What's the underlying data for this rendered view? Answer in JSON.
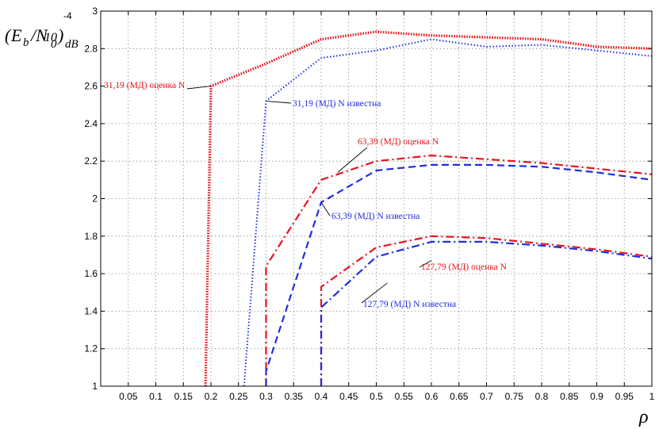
{
  "chart_data": {
    "type": "line",
    "title": "",
    "xlabel": "ρ",
    "ylabel": "(E_b/N_0)_dB",
    "y_multiplier": "10",
    "y_multiplier_exp": "-4",
    "xlim": [
      0,
      1
    ],
    "ylim": [
      1,
      3
    ],
    "xticks": [
      "0.05",
      "0.1",
      "0.15",
      "0.2",
      "0.25",
      "0.3",
      "0.35",
      "0.4",
      "0.45",
      "0.5",
      "0.55",
      "0.6",
      "0.65",
      "0.7",
      "0.75",
      "0.8",
      "0.85",
      "0.9",
      "0.95",
      "1"
    ],
    "yticks": [
      "1",
      "1.2",
      "1.4",
      "1.6",
      "1.8",
      "2",
      "2.2",
      "2.4",
      "2.6",
      "2.8",
      "3"
    ],
    "grid": true,
    "series": [
      {
        "name": "31,19 (МД) оценка N",
        "color": "#e8141c",
        "style": "dotted-thick",
        "x": [
          0.19,
          0.2,
          0.3,
          0.4,
          0.5,
          0.6,
          0.7,
          0.8,
          0.9,
          1.0
        ],
        "y": [
          1.0,
          2.6,
          2.72,
          2.85,
          2.89,
          2.87,
          2.86,
          2.85,
          2.81,
          2.8
        ]
      },
      {
        "name": "31,19 (МД) N известна",
        "color": "#1f2ee0",
        "style": "dotted",
        "x": [
          0.26,
          0.3,
          0.4,
          0.5,
          0.6,
          0.7,
          0.8,
          0.9,
          1.0
        ],
        "y": [
          1.0,
          2.52,
          2.75,
          2.79,
          2.85,
          2.81,
          2.82,
          2.79,
          2.76
        ]
      },
      {
        "name": "63,39 (МД) оценка N",
        "color": "#e8141c",
        "style": "dash-dot",
        "x": [
          0.3,
          0.3,
          0.4,
          0.5,
          0.6,
          0.7,
          0.8,
          0.9,
          1.0
        ],
        "y": [
          1.0,
          1.64,
          2.1,
          2.2,
          2.23,
          2.21,
          2.19,
          2.16,
          2.13
        ]
      },
      {
        "name": "63,39 (МД) N известна",
        "color": "#1f2ee0",
        "style": "dashed",
        "x": [
          0.3,
          0.3,
          0.4,
          0.5,
          0.6,
          0.7,
          0.8,
          0.9,
          1.0
        ],
        "y": [
          1.0,
          1.08,
          1.98,
          2.15,
          2.18,
          2.18,
          2.17,
          2.14,
          2.1
        ]
      },
      {
        "name": "127,79 (МД) оценка N",
        "color": "#e8141c",
        "style": "dash-dot",
        "x": [
          0.4,
          0.4,
          0.5,
          0.6,
          0.7,
          0.8,
          0.9,
          1.0
        ],
        "y": [
          1.0,
          1.53,
          1.74,
          1.8,
          1.79,
          1.76,
          1.73,
          1.69
        ]
      },
      {
        "name": "127,79 (МД) N известна",
        "color": "#1f2ee0",
        "style": "dash-dot",
        "x": [
          0.4,
          0.4,
          0.5,
          0.6,
          0.7,
          0.8,
          0.9,
          1.0
        ],
        "y": [
          1.0,
          1.42,
          1.69,
          1.77,
          1.77,
          1.75,
          1.72,
          1.68
        ]
      }
    ],
    "annotations": [
      {
        "text": "31,19 (МД) оценка N",
        "color": "#e8141c",
        "anchor": [
          0.2,
          2.6
        ]
      },
      {
        "text": "31,19 (МД) N известна",
        "color": "#1f2ee0",
        "anchor": [
          0.3,
          2.52
        ]
      },
      {
        "text": "63,39 (МД) оценка N",
        "color": "#e8141c",
        "anchor": [
          0.43,
          2.14
        ]
      },
      {
        "text": "63,39 (МД) N известна",
        "color": "#1f2ee0",
        "anchor": [
          0.4,
          1.98
        ]
      },
      {
        "text": "127,79 (МД) оценка N",
        "color": "#e8141c",
        "anchor": [
          0.6,
          1.67
        ]
      },
      {
        "text": "127,79 (МД) N известна",
        "color": "#1f2ee0",
        "anchor": [
          0.52,
          1.55
        ]
      }
    ]
  }
}
